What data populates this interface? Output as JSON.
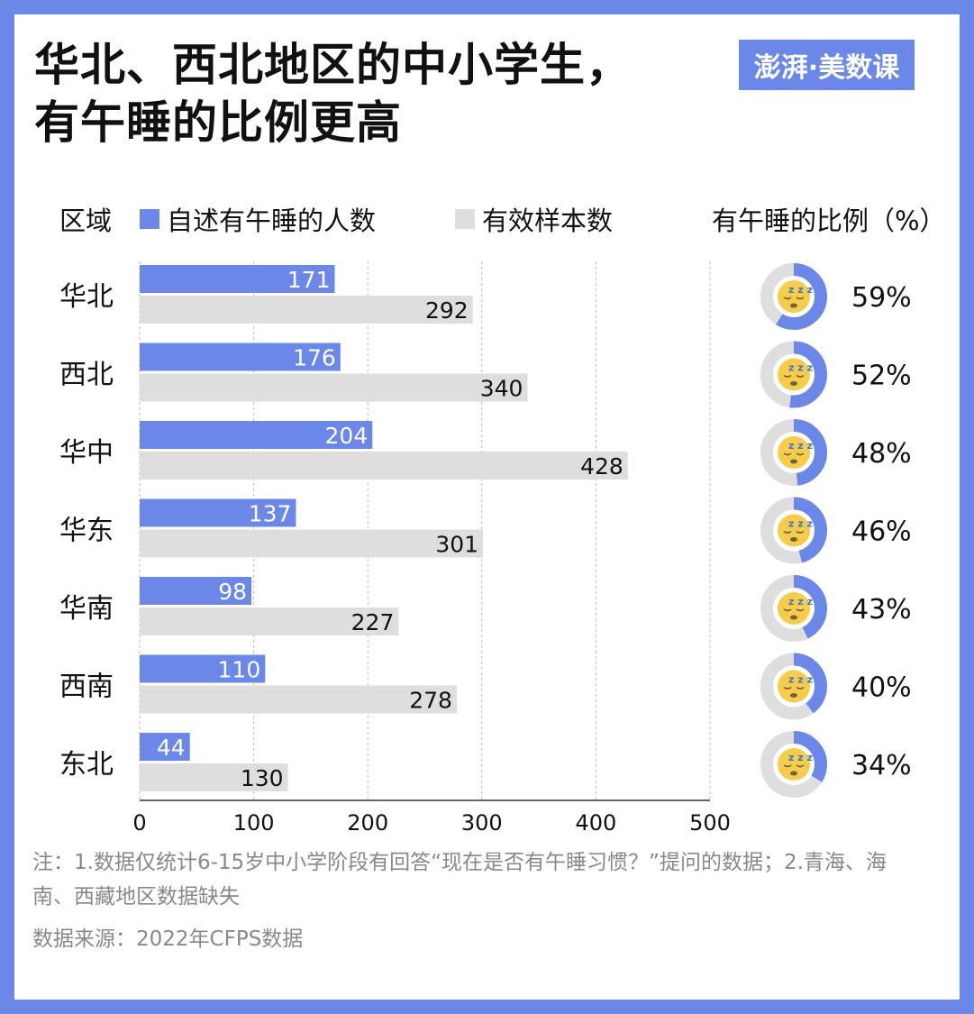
{
  "title_line1": "华北、西北地区的中小学生，",
  "title_line2": "有午睡的比例更高",
  "logo_text": "澎湃·美数课",
  "colors": {
    "nap": "#6b87e8",
    "sample": "#dedede",
    "border": "#6b87e8",
    "emoji": "#f7cc4a"
  },
  "icon": "sleeping-face-emoji",
  "chart_data": {
    "type": "bar",
    "orientation": "horizontal",
    "region_header": "区域",
    "ratio_header": "有午睡的比例（%）",
    "categories": [
      "华北",
      "西北",
      "华中",
      "华东",
      "华南",
      "西南",
      "东北"
    ],
    "series": [
      {
        "name": "自述有午睡的人数",
        "values": [
          171,
          176,
          204,
          137,
          98,
          110,
          44
        ]
      },
      {
        "name": "有效样本数",
        "values": [
          292,
          340,
          428,
          301,
          227,
          278,
          130
        ]
      }
    ],
    "ratio_values": [
      59,
      52,
      48,
      46,
      43,
      40,
      34
    ],
    "ratio_labels": [
      "59%",
      "52%",
      "48%",
      "46%",
      "43%",
      "40%",
      "34%"
    ],
    "xlim": [
      0,
      500
    ],
    "xticks": [
      0,
      100,
      200,
      300,
      400,
      500
    ],
    "grid": true
  },
  "note": "注：1.数据仅统计6-15岁中小学阶段有回答“现在是否有午睡习惯？”提问的数据；2.青海、海南、西藏地区数据缺失",
  "source": "数据来源：2022年CFPS数据"
}
